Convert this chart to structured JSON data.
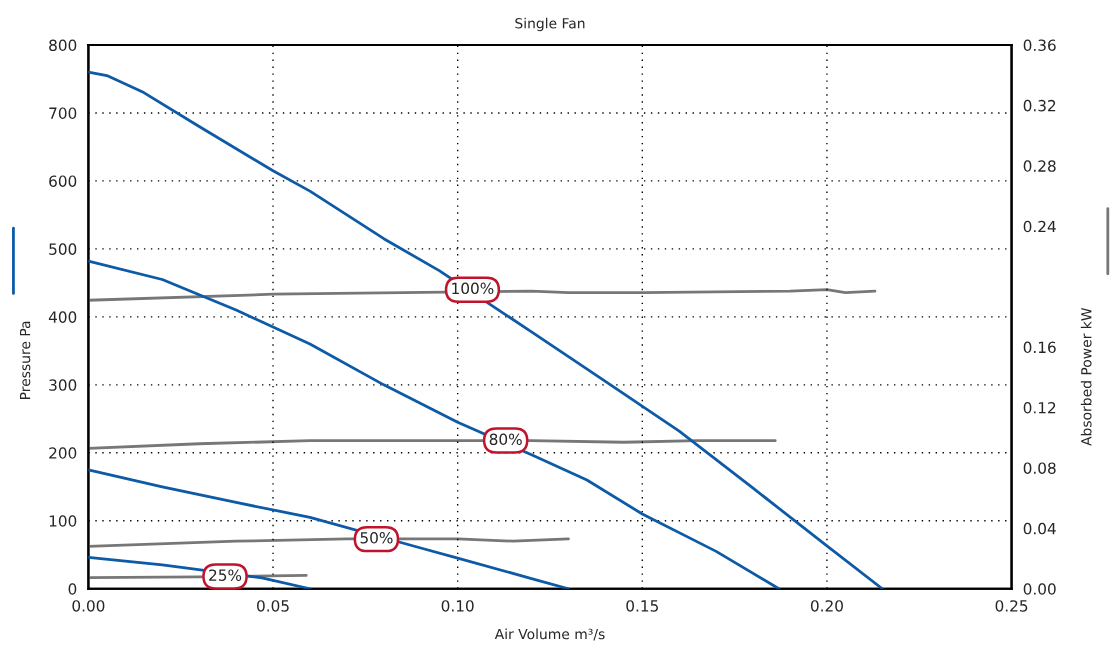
{
  "chart_data": {
    "type": "line",
    "title": "Single Fan",
    "xlabel": "Air Volume m³/s",
    "ylabel": "Pressure Pa",
    "y2label": "Absorbed Power kW",
    "xlim": [
      0,
      0.25
    ],
    "xticks": [
      {
        "value": 0,
        "label": "0.00"
      },
      {
        "value": 0.05,
        "label": "0.05"
      },
      {
        "value": 0.1,
        "label": "0.10"
      },
      {
        "value": 0.15,
        "label": "0.15"
      },
      {
        "value": 0.2,
        "label": "0.20"
      },
      {
        "value": 0.25,
        "label": "0.25"
      }
    ],
    "ylim": [
      0,
      800
    ],
    "yticks": [
      0,
      100,
      200,
      300,
      400,
      500,
      600,
      700,
      800
    ],
    "y2lim": [
      0,
      0.36
    ],
    "y2ticks": [
      {
        "value": 0,
        "label": "0.00"
      },
      {
        "value": 0.04,
        "label": "0.04"
      },
      {
        "value": 0.08,
        "label": "0.08"
      },
      {
        "value": 0.12,
        "label": "0.12"
      },
      {
        "value": 0.16,
        "label": "0.16"
      },
      {
        "value": 0.24,
        "label": "0.24"
      },
      {
        "value": 0.28,
        "label": "0.28"
      },
      {
        "value": 0.32,
        "label": "0.32"
      },
      {
        "value": 0.36,
        "label": "0.36"
      }
    ],
    "grid": true,
    "marker": "none",
    "line_style": "solid",
    "series": [
      {
        "color": "#0d5aa7",
        "x": [
          0,
          0.005,
          0.015,
          0.03,
          0.05,
          0.06,
          0.08,
          0.095,
          0.12,
          0.14,
          0.16,
          0.18,
          0.2,
          0.215
        ],
        "values": [
          760,
          755,
          730,
          680,
          615,
          585,
          515,
          468,
          378,
          305,
          232,
          148,
          63,
          0
        ]
      },
      {
        "color": "#0d5aa7",
        "x": [
          0,
          0.02,
          0.04,
          0.06,
          0.08,
          0.1,
          0.12,
          0.135,
          0.15,
          0.17,
          0.187
        ],
        "values": [
          482,
          455,
          410,
          360,
          300,
          245,
          197,
          160,
          110,
          55,
          0
        ]
      },
      {
        "color": "#0d5aa7",
        "x": [
          0,
          0.02,
          0.04,
          0.06,
          0.09,
          0.1,
          0.12,
          0.13
        ],
        "values": [
          175,
          150,
          127,
          105,
          60,
          45,
          15,
          0
        ]
      },
      {
        "color": "#0d5aa7",
        "x": [
          0,
          0.02,
          0.047,
          0.06
        ],
        "values": [
          46,
          35,
          16,
          0
        ]
      },
      {
        "color": "#777777",
        "axis": "y2",
        "x": [
          0,
          0.05,
          0.12,
          0.13,
          0.15,
          0.19,
          0.2,
          0.205,
          0.213
        ],
        "values": [
          0.191,
          0.195,
          0.197,
          0.196,
          0.196,
          0.197,
          0.198,
          0.196,
          0.197
        ]
      },
      {
        "color": "#777777",
        "axis": "y2",
        "x": [
          0,
          0.03,
          0.06,
          0.08,
          0.12,
          0.145,
          0.165,
          0.186
        ],
        "values": [
          0.093,
          0.096,
          0.098,
          0.098,
          0.098,
          0.097,
          0.098,
          0.098
        ]
      },
      {
        "color": "#777777",
        "axis": "y2",
        "x": [
          0,
          0.04,
          0.07,
          0.1,
          0.115,
          0.13
        ],
        "values": [
          0.028,
          0.0315,
          0.033,
          0.033,
          0.0315,
          0.033
        ]
      },
      {
        "color": "#777777",
        "axis": "y2",
        "x": [
          0,
          0.03,
          0.059
        ],
        "values": [
          0.0073,
          0.0079,
          0.0088
        ]
      }
    ],
    "annotations": [
      {
        "text": "100%",
        "x": 0.104,
        "y": 440
      },
      {
        "text": "80%",
        "x": 0.113,
        "y": 218
      },
      {
        "text": "50%",
        "x": 0.078,
        "y": 73
      },
      {
        "text": "25%",
        "x": 0.037,
        "y": 18
      }
    ]
  }
}
